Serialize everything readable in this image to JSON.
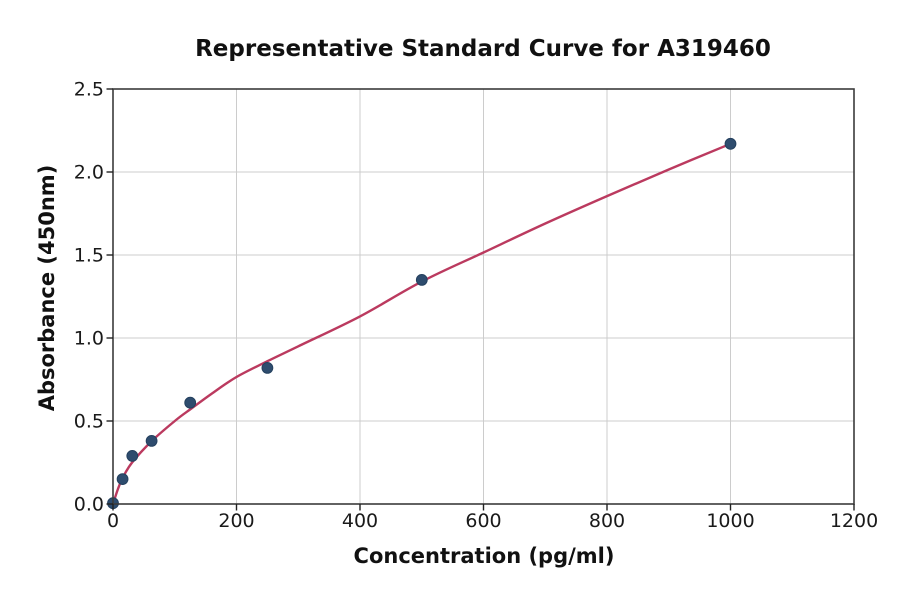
{
  "chart_data": {
    "type": "scatter",
    "title": "Representative Standard Curve for A319460",
    "xlabel": "Concentration (pg/ml)",
    "ylabel": "Absorbance (450nm)",
    "xlim": [
      0,
      1200
    ],
    "ylim": [
      0,
      2.5
    ],
    "x_ticks": [
      0,
      200,
      400,
      600,
      800,
      1000,
      1200
    ],
    "x_tick_labels": [
      "0",
      "200",
      "400",
      "600",
      "800",
      "1000",
      "1200"
    ],
    "y_ticks": [
      0.0,
      0.5,
      1.0,
      1.5,
      2.0,
      2.5
    ],
    "y_tick_labels": [
      "0.0",
      "0.5",
      "1.0",
      "1.5",
      "2.0",
      "2.5"
    ],
    "grid": true,
    "legend": "none",
    "points": [
      [
        0,
        0.005
      ],
      [
        15.6,
        0.15
      ],
      [
        31.2,
        0.29
      ],
      [
        62.5,
        0.38
      ],
      [
        125,
        0.61
      ],
      [
        250,
        0.82
      ],
      [
        500,
        1.35
      ],
      [
        1000,
        2.17
      ]
    ],
    "fit_curve": {
      "description": "smooth fitted standard curve from 0 to 1000 pg/ml",
      "anchors": [
        [
          0,
          0
        ],
        [
          8,
          0.09
        ],
        [
          16,
          0.16
        ],
        [
          31,
          0.25
        ],
        [
          63,
          0.38
        ],
        [
          100,
          0.5
        ],
        [
          125,
          0.57
        ],
        [
          160,
          0.665
        ],
        [
          200,
          0.765
        ],
        [
          250,
          0.86
        ],
        [
          300,
          0.95
        ],
        [
          400,
          1.13
        ],
        [
          500,
          1.34
        ],
        [
          600,
          1.515
        ],
        [
          700,
          1.69
        ],
        [
          800,
          1.855
        ],
        [
          900,
          2.015
        ],
        [
          1000,
          2.17
        ]
      ]
    },
    "colors": {
      "curve": "#bb3a5f",
      "point_fill": "#2e4c6e",
      "point_edge": "#24405e",
      "grid": "#cccccc",
      "frame": "#3b3b3b",
      "tick": "#222222",
      "text": "#111111"
    }
  }
}
